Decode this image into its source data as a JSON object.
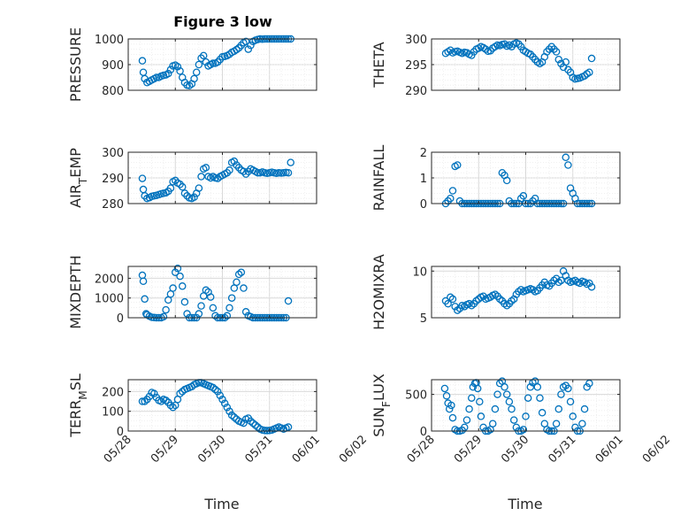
{
  "figure": {
    "title": "Figure 3 low",
    "xlabel": "Time",
    "xticks": [
      "05/28",
      "05/29",
      "05/30",
      "05/31",
      "06/01",
      "06/02"
    ]
  },
  "colors": {
    "marker": "#0072BD",
    "axis": "#262626",
    "grid": "#d9d9d9",
    "background": "#ffffff"
  },
  "chart_data": [
    {
      "type": "scatter",
      "ylabel": "PRESSURE",
      "yticks": [
        "800",
        "900",
        "1000"
      ],
      "ylim": [
        800,
        1000
      ],
      "xlim_days": [
        0,
        4
      ],
      "grid": true,
      "x_days": [
        0.3,
        0.32,
        0.35,
        0.4,
        0.45,
        0.5,
        0.55,
        0.6,
        0.65,
        0.7,
        0.75,
        0.8,
        0.85,
        0.9,
        0.95,
        1.0,
        1.05,
        1.1,
        1.15,
        1.2,
        1.25,
        1.3,
        1.35,
        1.4,
        1.45,
        1.5,
        1.55,
        1.6,
        1.65,
        1.7,
        1.75,
        1.8,
        1.85,
        1.9,
        1.95,
        2.0,
        2.05,
        2.1,
        2.15,
        2.2,
        2.25,
        2.3,
        2.35,
        2.4,
        2.45,
        2.5,
        2.55,
        2.6,
        2.65,
        2.7,
        2.75,
        2.8,
        2.85,
        2.9,
        2.95,
        3.0,
        3.05,
        3.1,
        3.15,
        3.2,
        3.25,
        3.3,
        3.35,
        3.4,
        3.45
      ],
      "values": [
        915,
        870,
        845,
        830,
        835,
        840,
        845,
        850,
        850,
        855,
        858,
        860,
        865,
        880,
        895,
        898,
        892,
        875,
        850,
        830,
        820,
        818,
        825,
        845,
        870,
        900,
        925,
        935,
        910,
        895,
        900,
        905,
        905,
        910,
        920,
        930,
        932,
        935,
        940,
        948,
        952,
        958,
        965,
        975,
        985,
        990,
        960,
        975,
        990,
        995,
        998,
        1000,
        999,
        1000,
        1000,
        1000,
        1000,
        1000,
        1000,
        1000,
        1000,
        1000,
        1000,
        1000,
        1000
      ]
    },
    {
      "type": "scatter",
      "ylabel": "THETA",
      "yticks": [
        "290",
        "295",
        "300"
      ],
      "ylim": [
        290,
        300
      ],
      "xlim_days": [
        0,
        4
      ],
      "grid": true,
      "x_days": [
        0.3,
        0.35,
        0.4,
        0.45,
        0.5,
        0.55,
        0.6,
        0.65,
        0.7,
        0.75,
        0.8,
        0.85,
        0.9,
        0.95,
        1.0,
        1.05,
        1.1,
        1.15,
        1.2,
        1.25,
        1.3,
        1.35,
        1.4,
        1.45,
        1.5,
        1.55,
        1.6,
        1.65,
        1.7,
        1.75,
        1.8,
        1.85,
        1.9,
        1.95,
        2.0,
        2.05,
        2.1,
        2.15,
        2.2,
        2.25,
        2.3,
        2.35,
        2.4,
        2.45,
        2.5,
        2.55,
        2.6,
        2.65,
        2.7,
        2.75,
        2.8,
        2.85,
        2.9,
        2.95,
        3.0,
        3.05,
        3.1,
        3.15,
        3.2,
        3.25,
        3.3,
        3.35,
        3.4
      ],
      "values": [
        297.2,
        297.5,
        297.8,
        297.3,
        297.5,
        297.6,
        297.4,
        297.2,
        297.4,
        297.3,
        297.0,
        296.8,
        297.5,
        298.0,
        298.2,
        298.5,
        298.3,
        298.0,
        297.6,
        297.7,
        298.2,
        298.5,
        298.8,
        298.7,
        298.9,
        299.0,
        298.6,
        298.8,
        298.5,
        299.0,
        299.2,
        299.0,
        298.5,
        297.8,
        297.5,
        297.2,
        297.0,
        296.5,
        296.0,
        295.5,
        295.2,
        295.5,
        296.5,
        297.5,
        298.0,
        298.5,
        298.0,
        297.5,
        296.0,
        295.2,
        294.5,
        295.5,
        294.0,
        293.5,
        292.5,
        292.2,
        292.3,
        292.4,
        292.6,
        292.8,
        293.2,
        293.5,
        296.2
      ]
    },
    {
      "type": "scatter",
      "ylabel": "AIR_TEMP",
      "yticks": [
        "280",
        "290",
        "300"
      ],
      "ylim": [
        280,
        300
      ],
      "xlim_days": [
        0,
        4
      ],
      "grid": true,
      "x_days": [
        0.3,
        0.32,
        0.35,
        0.4,
        0.45,
        0.5,
        0.55,
        0.6,
        0.65,
        0.7,
        0.75,
        0.8,
        0.85,
        0.9,
        0.95,
        1.0,
        1.05,
        1.1,
        1.15,
        1.2,
        1.25,
        1.3,
        1.35,
        1.4,
        1.45,
        1.5,
        1.55,
        1.6,
        1.65,
        1.7,
        1.75,
        1.8,
        1.85,
        1.9,
        1.95,
        2.0,
        2.05,
        2.1,
        2.15,
        2.2,
        2.25,
        2.3,
        2.35,
        2.4,
        2.45,
        2.5,
        2.55,
        2.6,
        2.65,
        2.7,
        2.75,
        2.8,
        2.85,
        2.9,
        2.95,
        3.0,
        3.05,
        3.1,
        3.15,
        3.2,
        3.25,
        3.3,
        3.35,
        3.4,
        3.45
      ],
      "values": [
        289.8,
        285.5,
        283.0,
        282.0,
        282.3,
        282.8,
        283.0,
        283.2,
        283.5,
        283.8,
        284.0,
        284.2,
        284.8,
        286.0,
        288.5,
        289.0,
        288.0,
        287.5,
        286.5,
        284.0,
        283.0,
        282.2,
        282.0,
        282.5,
        284.0,
        286.0,
        290.5,
        293.5,
        294.0,
        290.5,
        290.0,
        290.5,
        290.0,
        289.8,
        290.5,
        291.0,
        291.5,
        292.0,
        293.0,
        296.0,
        296.5,
        295.0,
        294.0,
        293.0,
        292.5,
        291.5,
        292.5,
        293.5,
        293.0,
        292.5,
        292.0,
        292.0,
        292.3,
        292.0,
        291.8,
        292.0,
        292.2,
        292.0,
        291.8,
        292.0,
        291.9,
        292.0,
        292.1,
        292.0,
        296.0
      ]
    },
    {
      "type": "scatter",
      "ylabel": "RAINFALL",
      "yticks": [
        "0",
        "1",
        "2"
      ],
      "ylim": [
        0,
        2
      ],
      "xlim_days": [
        0,
        4
      ],
      "grid": true,
      "x_days": [
        0.3,
        0.35,
        0.4,
        0.45,
        0.5,
        0.55,
        0.6,
        0.65,
        0.7,
        0.75,
        0.8,
        0.85,
        0.9,
        0.95,
        1.0,
        1.05,
        1.1,
        1.15,
        1.2,
        1.25,
        1.3,
        1.35,
        1.4,
        1.45,
        1.5,
        1.55,
        1.6,
        1.65,
        1.7,
        1.75,
        1.8,
        1.85,
        1.9,
        1.95,
        2.0,
        2.05,
        2.1,
        2.15,
        2.2,
        2.25,
        2.3,
        2.35,
        2.4,
        2.45,
        2.5,
        2.55,
        2.6,
        2.65,
        2.7,
        2.75,
        2.8,
        2.85,
        2.9,
        2.95,
        3.0,
        3.05,
        3.1,
        3.15,
        3.2,
        3.25,
        3.3,
        3.35,
        3.4
      ],
      "values": [
        0.0,
        0.1,
        0.2,
        0.5,
        1.45,
        1.5,
        0.1,
        0.0,
        0.0,
        0.0,
        0.0,
        0.0,
        0.0,
        0.0,
        0.0,
        0.0,
        0.0,
        0.0,
        0.0,
        0.0,
        0.0,
        0.0,
        0.0,
        0.0,
        1.2,
        1.1,
        0.9,
        0.1,
        0.0,
        0.0,
        0.0,
        0.0,
        0.2,
        0.3,
        0.0,
        0.0,
        0.0,
        0.1,
        0.2,
        0.0,
        0.0,
        0.0,
        0.0,
        0.0,
        0.0,
        0.0,
        0.0,
        0.0,
        0.0,
        0.0,
        0.0,
        1.8,
        1.5,
        0.6,
        0.4,
        0.2,
        0.0,
        0.0,
        0.0,
        0.0,
        0.0,
        0.0,
        0.0
      ]
    },
    {
      "type": "scatter",
      "ylabel": "MIXDEPTH",
      "yticks": [
        "0",
        "1000",
        "2000"
      ],
      "ylim": [
        0,
        2600
      ],
      "xlim_days": [
        0,
        4
      ],
      "grid": true,
      "x_days": [
        0.3,
        0.32,
        0.35,
        0.38,
        0.4,
        0.45,
        0.5,
        0.55,
        0.6,
        0.65,
        0.7,
        0.75,
        0.8,
        0.85,
        0.9,
        0.95,
        1.0,
        1.05,
        1.1,
        1.15,
        1.2,
        1.25,
        1.3,
        1.35,
        1.4,
        1.45,
        1.5,
        1.55,
        1.6,
        1.65,
        1.7,
        1.75,
        1.8,
        1.85,
        1.9,
        1.95,
        2.0,
        2.05,
        2.1,
        2.15,
        2.2,
        2.25,
        2.3,
        2.35,
        2.4,
        2.45,
        2.5,
        2.55,
        2.6,
        2.65,
        2.7,
        2.75,
        2.8,
        2.85,
        2.9,
        2.95,
        3.0,
        3.05,
        3.1,
        3.15,
        3.2,
        3.25,
        3.3,
        3.35,
        3.4
      ],
      "values": [
        2150,
        1850,
        950,
        200,
        150,
        80,
        20,
        10,
        0,
        0,
        0,
        50,
        400,
        900,
        1200,
        1500,
        2300,
        2500,
        2100,
        1600,
        800,
        200,
        0,
        0,
        0,
        0,
        200,
        600,
        1100,
        1400,
        1300,
        1050,
        500,
        100,
        0,
        0,
        0,
        0,
        100,
        500,
        1000,
        1500,
        1800,
        2200,
        2300,
        1500,
        300,
        100,
        50,
        0,
        0,
        0,
        0,
        0,
        0,
        0,
        0,
        0,
        0,
        0,
        0,
        0,
        0,
        0,
        850
      ]
    },
    {
      "type": "scatter",
      "ylabel": "H2OMIXRA",
      "yticks": [
        "5",
        "10"
      ],
      "ylim": [
        5,
        10.5
      ],
      "xlim_days": [
        0,
        4
      ],
      "grid": true,
      "x_days": [
        0.3,
        0.35,
        0.4,
        0.45,
        0.5,
        0.55,
        0.6,
        0.65,
        0.7,
        0.75,
        0.8,
        0.85,
        0.9,
        0.95,
        1.0,
        1.05,
        1.1,
        1.15,
        1.2,
        1.25,
        1.3,
        1.35,
        1.4,
        1.45,
        1.5,
        1.55,
        1.6,
        1.65,
        1.7,
        1.75,
        1.8,
        1.85,
        1.9,
        1.95,
        2.0,
        2.05,
        2.1,
        2.15,
        2.2,
        2.25,
        2.3,
        2.35,
        2.4,
        2.45,
        2.5,
        2.55,
        2.6,
        2.65,
        2.7,
        2.75,
        2.8,
        2.85,
        2.9,
        2.95,
        3.0,
        3.05,
        3.1,
        3.15,
        3.2,
        3.25,
        3.3,
        3.35,
        3.4
      ],
      "values": [
        6.8,
        6.5,
        7.2,
        7.0,
        6.2,
        5.8,
        6.0,
        6.3,
        6.2,
        6.4,
        6.5,
        6.3,
        6.5,
        6.8,
        7.0,
        7.2,
        7.3,
        7.0,
        7.1,
        7.2,
        7.4,
        7.5,
        7.3,
        7.0,
        6.8,
        6.5,
        6.3,
        6.5,
        6.8,
        7.0,
        7.5,
        7.8,
        8.0,
        7.8,
        7.9,
        8.0,
        8.1,
        8.0,
        7.8,
        7.9,
        8.2,
        8.5,
        8.8,
        8.5,
        8.4,
        8.7,
        9.0,
        9.2,
        8.8,
        9.0,
        10.0,
        9.5,
        9.0,
        8.8,
        8.9,
        9.0,
        8.8,
        8.7,
        8.9,
        8.8,
        8.6,
        8.7,
        8.3
      ]
    },
    {
      "type": "scatter",
      "ylabel": "TERR_MSL",
      "yticks": [
        "0",
        "100",
        "200"
      ],
      "ylim": [
        0,
        260
      ],
      "xlim_days": [
        0,
        4
      ],
      "grid": true,
      "x_days": [
        0.3,
        0.35,
        0.4,
        0.45,
        0.5,
        0.55,
        0.6,
        0.65,
        0.7,
        0.75,
        0.8,
        0.85,
        0.9,
        0.95,
        1.0,
        1.05,
        1.1,
        1.15,
        1.2,
        1.25,
        1.3,
        1.35,
        1.4,
        1.45,
        1.5,
        1.55,
        1.6,
        1.65,
        1.7,
        1.75,
        1.8,
        1.85,
        1.9,
        1.95,
        2.0,
        2.05,
        2.1,
        2.15,
        2.2,
        2.25,
        2.3,
        2.35,
        2.4,
        2.45,
        2.5,
        2.55,
        2.6,
        2.65,
        2.7,
        2.75,
        2.8,
        2.85,
        2.9,
        2.95,
        3.0,
        3.05,
        3.1,
        3.15,
        3.2,
        3.25,
        3.3,
        3.35,
        3.4
      ],
      "values": [
        150,
        150,
        160,
        175,
        195,
        190,
        170,
        155,
        150,
        160,
        155,
        145,
        130,
        120,
        130,
        160,
        190,
        200,
        210,
        215,
        220,
        225,
        235,
        240,
        245,
        245,
        240,
        235,
        230,
        225,
        220,
        210,
        200,
        180,
        160,
        140,
        120,
        100,
        80,
        70,
        60,
        50,
        45,
        40,
        60,
        65,
        50,
        40,
        30,
        20,
        10,
        5,
        3,
        2,
        3,
        5,
        10,
        15,
        20,
        15,
        10,
        15,
        20
      ]
    },
    {
      "type": "scatter",
      "ylabel": "SUN_FLUX",
      "yticks": [
        "0",
        "500"
      ],
      "ylim": [
        0,
        700
      ],
      "xlim_days": [
        0,
        4
      ],
      "grid": true,
      "x_days": [
        0.28,
        0.32,
        0.35,
        0.38,
        0.42,
        0.45,
        0.5,
        0.55,
        0.6,
        0.65,
        0.7,
        0.75,
        0.8,
        0.85,
        0.88,
        0.92,
        0.95,
        0.98,
        1.02,
        1.05,
        1.1,
        1.15,
        1.2,
        1.25,
        1.3,
        1.35,
        1.4,
        1.45,
        1.5,
        1.55,
        1.6,
        1.65,
        1.7,
        1.75,
        1.8,
        1.85,
        1.9,
        1.95,
        2.0,
        2.05,
        2.1,
        2.15,
        2.2,
        2.25,
        2.3,
        2.35,
        2.4,
        2.45,
        2.5,
        2.55,
        2.6,
        2.65,
        2.7,
        2.75,
        2.8,
        2.85,
        2.9,
        2.95,
        3.0,
        3.05,
        3.1,
        3.15,
        3.2,
        3.25,
        3.3,
        3.35
      ],
      "values": [
        580,
        480,
        380,
        300,
        350,
        180,
        20,
        0,
        0,
        10,
        50,
        150,
        300,
        450,
        600,
        650,
        660,
        580,
        400,
        200,
        50,
        0,
        0,
        20,
        100,
        300,
        500,
        650,
        680,
        600,
        500,
        400,
        300,
        150,
        50,
        0,
        0,
        20,
        200,
        450,
        600,
        660,
        680,
        600,
        450,
        250,
        100,
        20,
        0,
        0,
        0,
        100,
        300,
        500,
        600,
        620,
        580,
        400,
        200,
        50,
        0,
        0,
        100,
        300,
        600,
        650
      ]
    }
  ]
}
